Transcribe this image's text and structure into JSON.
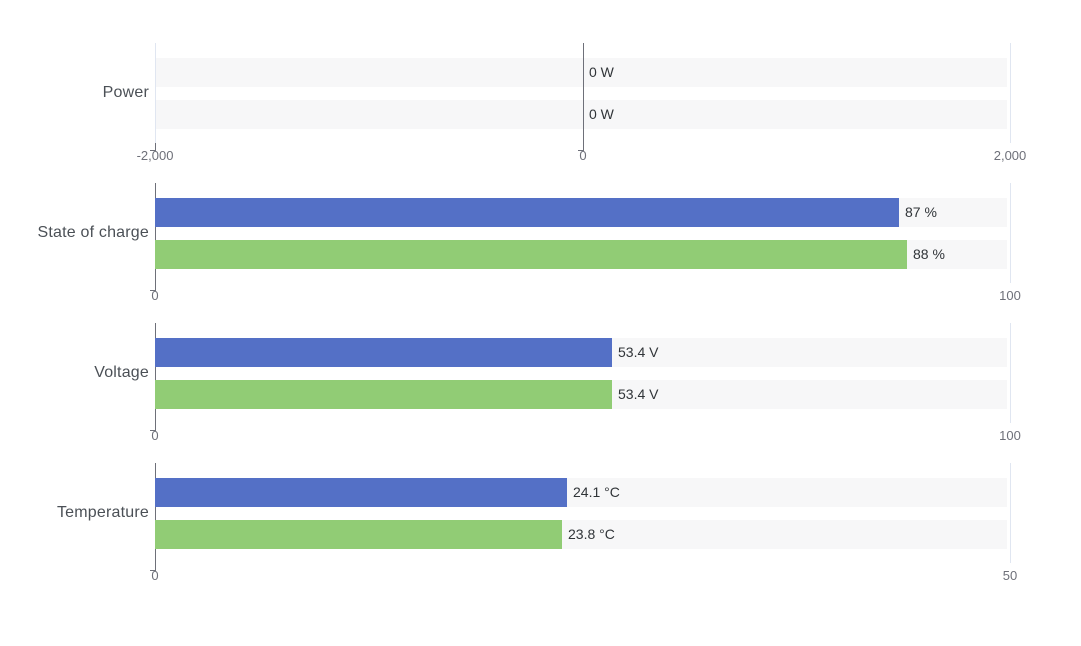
{
  "chart_data": {
    "type": "bar",
    "orientation": "horizontal",
    "background": "#ffffff",
    "grid": true,
    "legend_position": "none",
    "series_colors": [
      "#5470c6",
      "#91cc75"
    ],
    "track_color": "#f7f7f8",
    "axis_line_color": "#6e7079",
    "grid_line_color": "#e0e6f1",
    "category_label_color": "#4b5056",
    "value_label_color": "#303438",
    "tick_label_color": "#6e7079",
    "sections": [
      {
        "category": "Power",
        "unit": "W",
        "axis": {
          "min": -2000,
          "max": 2000
        },
        "ticks": [
          {
            "pos": 0,
            "label": "-2,000",
            "style": "grid-tick"
          },
          {
            "pos": 0.5,
            "label": "0",
            "style": "axis"
          },
          {
            "pos": 1,
            "label": "2,000",
            "style": "grid"
          }
        ],
        "bars": [
          {
            "value": 0,
            "label": "0 W"
          },
          {
            "value": 0,
            "label": "0 W"
          }
        ]
      },
      {
        "category": "State of charge",
        "unit": "%",
        "axis": {
          "min": 0,
          "max": 100
        },
        "ticks": [
          {
            "pos": 0,
            "label": "0",
            "style": "axis"
          },
          {
            "pos": 1,
            "label": "100",
            "style": "grid"
          }
        ],
        "bars": [
          {
            "value": 87,
            "label": "87 %"
          },
          {
            "value": 88,
            "label": "88 %"
          }
        ]
      },
      {
        "category": "Voltage",
        "unit": "V",
        "axis": {
          "min": 0,
          "max": 100
        },
        "ticks": [
          {
            "pos": 0,
            "label": "0",
            "style": "axis"
          },
          {
            "pos": 1,
            "label": "100",
            "style": "grid"
          }
        ],
        "bars": [
          {
            "value": 53.4,
            "label": "53.4 V"
          },
          {
            "value": 53.4,
            "label": "53.4 V"
          }
        ]
      },
      {
        "category": "Temperature",
        "unit": "°C",
        "axis": {
          "min": 0,
          "max": 50
        },
        "ticks": [
          {
            "pos": 0,
            "label": "0",
            "style": "axis"
          },
          {
            "pos": 1,
            "label": "50",
            "style": "grid"
          }
        ],
        "bars": [
          {
            "value": 24.1,
            "label": "24.1 °C"
          },
          {
            "value": 23.8,
            "label": "23.8 °C"
          }
        ]
      }
    ]
  }
}
